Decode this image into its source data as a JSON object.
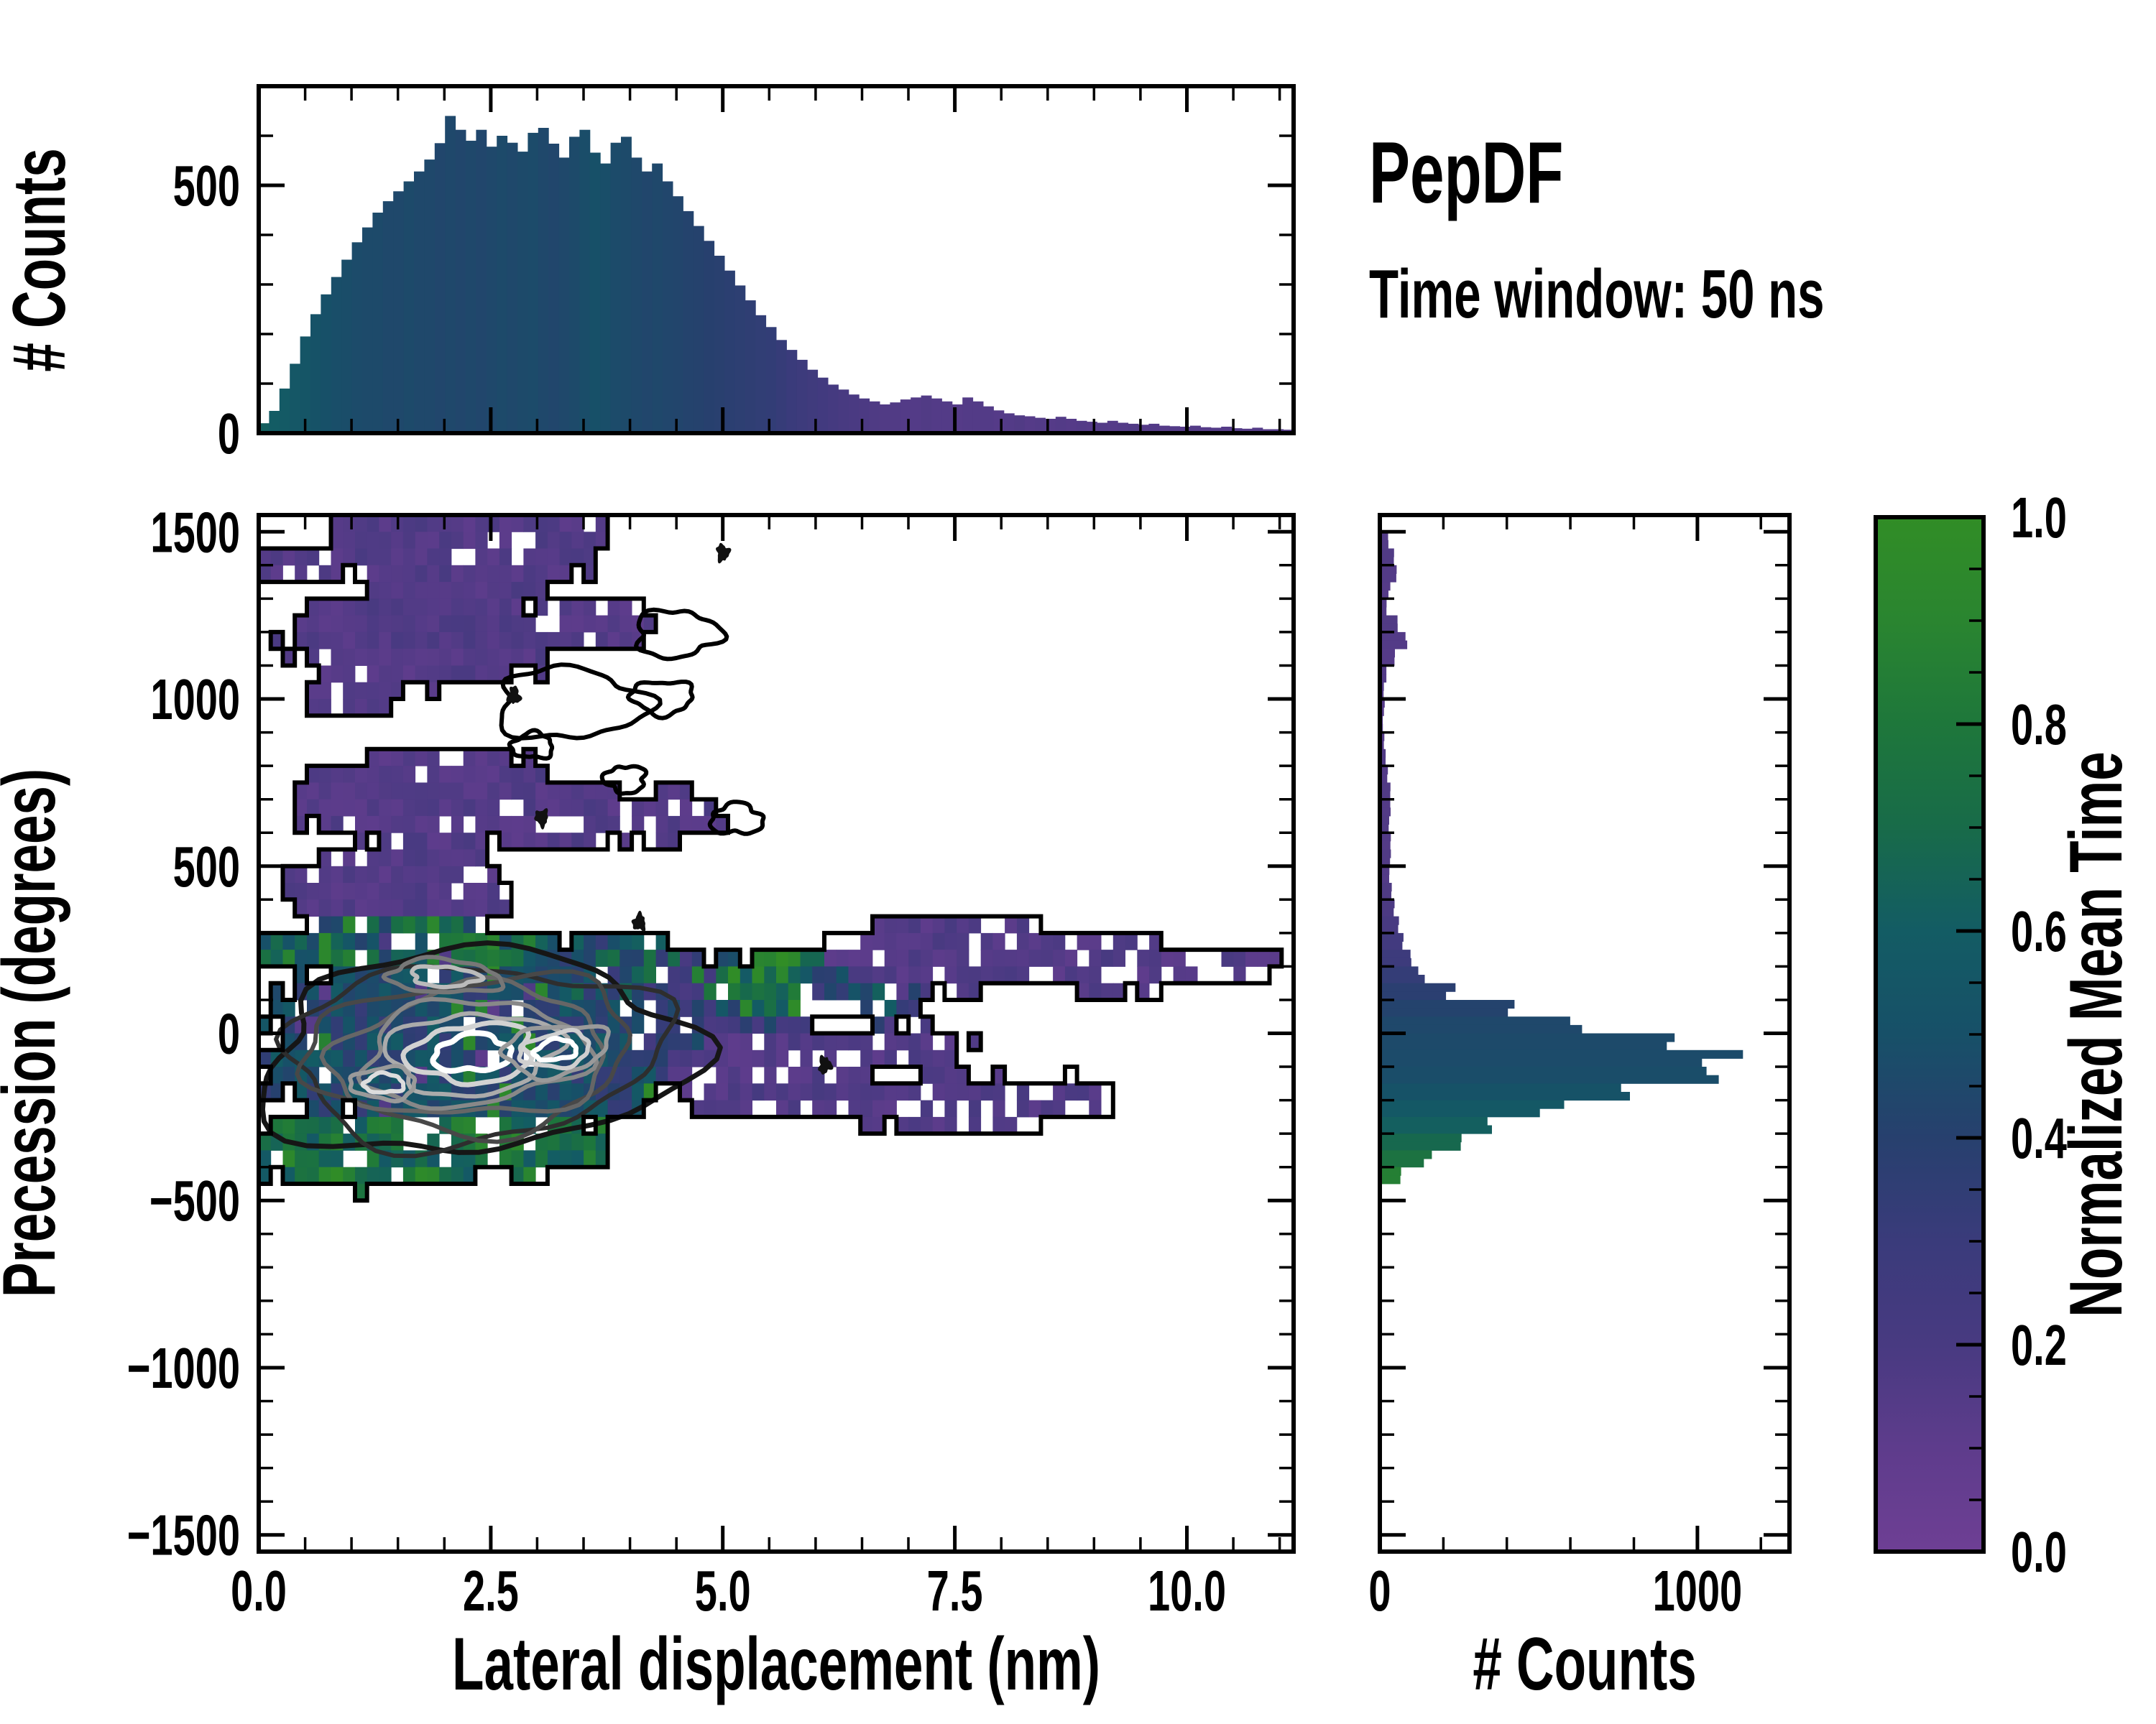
{
  "title": {
    "text": "PepDF",
    "subtitle": "Time window: 50 ns"
  },
  "labels": {
    "top_hist_y": "# Counts",
    "main_x": "Lateral displacement (nm)",
    "main_y": "Precession (degrees)",
    "right_hist_x": "# Counts",
    "colorbar": "Normalized Mean Time"
  },
  "colors": {
    "background": "#ffffff",
    "axis": "#000000",
    "contour_outer": "#000000"
  },
  "colormap": {
    "stops": [
      [
        0,
        "#6e3f94"
      ],
      [
        0.1,
        "#5e3c8c"
      ],
      [
        0.2,
        "#483a81"
      ],
      [
        0.3,
        "#3a3b7b"
      ],
      [
        0.4,
        "#27406e"
      ],
      [
        0.5,
        "#175068"
      ],
      [
        0.6,
        "#135c64"
      ],
      [
        0.7,
        "#186b49"
      ],
      [
        0.8,
        "#1e773b"
      ],
      [
        0.9,
        "#2a8530"
      ],
      [
        1,
        "#318d26"
      ]
    ]
  },
  "axes": {
    "main": {
      "xlim": [
        0,
        11.15
      ],
      "ylim": [
        -1550,
        1550
      ],
      "xticks": [
        0,
        2.5,
        5,
        7.5,
        10
      ],
      "xtick_labels": [
        "0.0",
        "2.5",
        "5.0",
        "7.5",
        "10.0"
      ],
      "xminor_step": 0.5,
      "yticks": [
        1500,
        1000,
        500,
        0,
        -500,
        -1000,
        -1500
      ],
      "ytick_labels": [
        "1500",
        "1000",
        "500",
        "0",
        "−500",
        "−1000",
        "−1500"
      ],
      "yminor_step": 100
    },
    "top_hist": {
      "ylim": [
        0,
        700
      ],
      "yticks": [
        0,
        500
      ],
      "ytick_labels": [
        "0",
        "500"
      ],
      "yminor_step": 100
    },
    "right_hist": {
      "xlim": [
        0,
        1290
      ],
      "xticks": [
        0,
        1000
      ],
      "xtick_labels": [
        "0",
        "1000"
      ],
      "xminor_step": 200
    },
    "colorbar": {
      "lim": [
        0,
        1
      ],
      "ticks": [
        0,
        0.2,
        0.4,
        0.6,
        0.8,
        1
      ],
      "tick_labels": [
        "0.0",
        "0.2",
        "0.4",
        "0.6",
        "0.8",
        "1.0"
      ],
      "minor_step": 0.05
    }
  },
  "chart_data": [
    {
      "name": "top_histogram",
      "type": "bar",
      "xlabel": "Lateral displacement (nm)",
      "ylabel": "# Counts",
      "xlim": [
        0,
        11.15
      ],
      "ylim": [
        0,
        700
      ],
      "bin_start": 0,
      "bin_width": 0.1115,
      "counts": [
        20,
        45,
        90,
        140,
        195,
        240,
        280,
        315,
        350,
        385,
        415,
        445,
        468,
        488,
        508,
        528,
        552,
        585,
        640,
        612,
        590,
        612,
        578,
        600,
        586,
        568,
        606,
        616,
        584,
        556,
        598,
        612,
        566,
        544,
        586,
        598,
        556,
        528,
        544,
        508,
        478,
        448,
        418,
        388,
        358,
        328,
        298,
        268,
        238,
        214,
        188,
        168,
        148,
        128,
        112,
        98,
        88,
        78,
        70,
        64,
        58,
        62,
        68,
        72,
        76,
        70,
        64,
        58,
        72,
        64,
        54,
        46,
        40,
        36,
        34,
        31,
        29,
        33,
        29,
        25,
        23,
        21,
        25,
        21,
        19,
        17,
        19,
        15,
        14,
        13,
        15,
        12,
        11,
        13,
        10,
        9,
        11,
        8,
        8,
        7
      ],
      "mean_time": [
        0.62,
        0.6,
        0.58,
        0.56,
        0.54,
        0.52,
        0.5,
        0.49,
        0.48,
        0.47,
        0.46,
        0.46,
        0.45,
        0.45,
        0.46,
        0.45,
        0.45,
        0.44,
        0.45,
        0.44,
        0.45,
        0.44,
        0.45,
        0.46,
        0.45,
        0.46,
        0.47,
        0.45,
        0.44,
        0.45,
        0.46,
        0.48,
        0.5,
        0.49,
        0.47,
        0.46,
        0.45,
        0.44,
        0.45,
        0.44,
        0.43,
        0.42,
        0.41,
        0.4,
        0.39,
        0.38,
        0.37,
        0.36,
        0.35,
        0.34,
        0.32,
        0.3,
        0.28,
        0.26,
        0.24,
        0.22,
        0.2,
        0.19,
        0.18,
        0.17,
        0.16,
        0.16,
        0.15,
        0.15,
        0.16,
        0.15,
        0.15,
        0.14,
        0.15,
        0.15,
        0.15,
        0.14,
        0.15,
        0.16,
        0.14,
        0.15,
        0.14,
        0.15,
        0.14,
        0.15,
        0.14,
        0.15,
        0.14,
        0.15,
        0.16,
        0.14,
        0.15,
        0.14,
        0.15,
        0.14,
        0.15,
        0.14,
        0.15,
        0.14,
        0.15,
        0.14,
        0.15,
        0.14,
        0.15,
        0.14
      ]
    },
    {
      "name": "joint_heatmap",
      "type": "heatmap",
      "xlabel": "Lateral displacement (nm)",
      "ylabel": "Precession (degrees)",
      "value_label": "Normalized Mean Time",
      "x_range": [
        0,
        11.15
      ],
      "y_range": [
        -1550,
        1550
      ],
      "cell_size": [
        0.12965,
        50
      ],
      "regions": [
        {
          "cx": 2.15,
          "cy": 1445,
          "rx": 1.45,
          "ry": 150,
          "d": 0.93,
          "v": [
            0.1,
            0.2
          ]
        },
        {
          "cx": 3.1,
          "cy": 1490,
          "rx": 0.8,
          "ry": 90,
          "d": 0.88,
          "v": [
            0.1,
            0.2
          ]
        },
        {
          "cx": 0.45,
          "cy": 1400,
          "rx": 0.4,
          "ry": 70,
          "d": 0.85,
          "v": [
            0.1,
            0.2
          ]
        },
        {
          "cx": 1.8,
          "cy": 1180,
          "rx": 1.55,
          "ry": 145,
          "d": 0.92,
          "v": [
            0.1,
            0.2
          ]
        },
        {
          "cx": 3.55,
          "cy": 1220,
          "rx": 0.7,
          "ry": 85,
          "d": 0.8,
          "v": [
            0.1,
            0.2
          ]
        },
        {
          "cx": 0.95,
          "cy": 1015,
          "rx": 0.5,
          "ry": 70,
          "d": 0.75,
          "v": [
            0.1,
            0.2
          ]
        },
        {
          "cx": 1.9,
          "cy": 700,
          "rx": 1.5,
          "ry": 150,
          "d": 0.9,
          "v": [
            0.1,
            0.2
          ]
        },
        {
          "cx": 3.35,
          "cy": 650,
          "rx": 0.75,
          "ry": 105,
          "d": 0.75,
          "v": [
            0.1,
            0.2
          ]
        },
        {
          "cx": 4.5,
          "cy": 645,
          "rx": 0.5,
          "ry": 80,
          "d": 0.85,
          "v": [
            0.1,
            0.2
          ]
        },
        {
          "cx": 1.55,
          "cy": 430,
          "rx": 1.3,
          "ry": 135,
          "d": 0.88,
          "v": [
            0.1,
            0.2
          ]
        },
        {
          "cx": 2.3,
          "cy": -25,
          "rx": 2.35,
          "ry": 300,
          "d": 0.965,
          "v": [
            0.32,
            0.6
          ],
          "sp": 1
        },
        {
          "cx": 1.5,
          "cy": 265,
          "rx": 1.55,
          "ry": 85,
          "d": 0.85,
          "v": [
            0.4,
            0.95
          ],
          "sp": 1
        },
        {
          "cx": 3.85,
          "cy": 190,
          "rx": 1.0,
          "ry": 105,
          "d": 0.8,
          "v": [
            0.3,
            0.75
          ]
        },
        {
          "cx": 1.15,
          "cy": -350,
          "rx": 1.45,
          "ry": 115,
          "d": 0.9,
          "v": [
            0.55,
            1.0
          ]
        },
        {
          "cx": 2.6,
          "cy": -330,
          "rx": 1.25,
          "ry": 95,
          "d": 0.82,
          "v": [
            0.5,
            0.95
          ]
        },
        {
          "cx": 4.95,
          "cy": 50,
          "rx": 1.0,
          "ry": 175,
          "d": 0.85,
          "v": [
            0.18,
            0.48
          ]
        },
        {
          "cx": 5.85,
          "cy": 150,
          "rx": 1.05,
          "ry": 105,
          "d": 0.8,
          "v": [
            0.55,
            1.0
          ]
        },
        {
          "cx": 6.55,
          "cy": 110,
          "rx": 0.75,
          "ry": 85,
          "d": 0.7,
          "v": [
            0.25,
            0.65
          ]
        },
        {
          "cx": 5.6,
          "cy": -130,
          "rx": 1.15,
          "ry": 135,
          "d": 0.85,
          "v": [
            0.1,
            0.22
          ]
        },
        {
          "cx": 7.55,
          "cy": 235,
          "rx": 1.45,
          "ry": 115,
          "d": 0.8,
          "v": [
            0.1,
            0.2
          ]
        },
        {
          "cx": 9.25,
          "cy": 205,
          "rx": 1.15,
          "ry": 85,
          "d": 0.75,
          "v": [
            0.1,
            0.2
          ]
        },
        {
          "cx": 10.35,
          "cy": 195,
          "rx": 0.75,
          "ry": 55,
          "d": 0.7,
          "v": [
            0.1,
            0.2
          ]
        },
        {
          "cx": 6.85,
          "cy": -45,
          "rx": 0.85,
          "ry": 75,
          "d": 0.7,
          "v": [
            0.1,
            0.2
          ]
        },
        {
          "cx": 7.45,
          "cy": -215,
          "rx": 1.05,
          "ry": 95,
          "d": 0.75,
          "v": [
            0.1,
            0.2
          ]
        },
        {
          "cx": 8.75,
          "cy": -195,
          "rx": 0.55,
          "ry": 65,
          "d": 0.7,
          "v": [
            0.1,
            0.2
          ]
        }
      ],
      "hollow_contours": [
        {
          "cx": 3.35,
          "cy": 985,
          "rx": 0.8,
          "ry": 105
        },
        {
          "cx": 4.35,
          "cy": 1005,
          "rx": 0.33,
          "ry": 50
        },
        {
          "cx": 2.95,
          "cy": 860,
          "rx": 0.22,
          "ry": 38
        },
        {
          "cx": 4.5,
          "cy": 1195,
          "rx": 0.45,
          "ry": 70
        },
        {
          "cx": 3.95,
          "cy": 760,
          "rx": 0.22,
          "ry": 40
        },
        {
          "cx": 5.15,
          "cy": 640,
          "rx": 0.28,
          "ry": 45
        }
      ],
      "dots": [
        {
          "cx": 2.75,
          "cy": 1010
        },
        {
          "cx": 5.0,
          "cy": 1437
        },
        {
          "cx": 3.05,
          "cy": 645
        },
        {
          "cx": 4.1,
          "cy": 332
        },
        {
          "cx": 6.1,
          "cy": -95
        }
      ],
      "density_contour_sets": [
        {
          "cx": 2.3,
          "cy": -60,
          "rx": 2.3,
          "ry": 300,
          "rot": -4,
          "levels": [
            {
              "s": 1.0,
              "color": "#161616",
              "w": 7
            },
            {
              "s": 0.88,
              "color": "#2e2e2e",
              "w": 6
            },
            {
              "s": 0.76,
              "color": "#484848",
              "w": 6
            },
            {
              "s": 0.64,
              "color": "#666666",
              "w": 6
            },
            {
              "s": 0.52,
              "color": "#888888",
              "w": 6
            },
            {
              "s": 0.4,
              "color": "#ababab",
              "w": 6
            },
            {
              "s": 0.29,
              "color": "#d2d2d2",
              "w": 7
            },
            {
              "s": 0.18,
              "color": "#ffffff",
              "w": 8
            }
          ]
        },
        {
          "cx": 3.2,
          "cy": -50,
          "rx": 0.9,
          "ry": 120,
          "rot": -8,
          "levels": [
            {
              "s": 0.62,
              "color": "#9a9a9a",
              "w": 6
            },
            {
              "s": 0.42,
              "color": "#cfcfcf",
              "w": 6
            },
            {
              "s": 0.25,
              "color": "#ffffff",
              "w": 7
            }
          ]
        },
        {
          "cx": 1.35,
          "cy": -150,
          "rx": 0.7,
          "ry": 95,
          "rot": 0,
          "levels": [
            {
              "s": 0.5,
              "color": "#9a9a9a",
              "w": 6
            },
            {
              "s": 0.3,
              "color": "#dddddd",
              "w": 6
            }
          ]
        },
        {
          "cx": 2.0,
          "cy": 170,
          "rx": 1.1,
          "ry": 90,
          "rot": 3,
          "levels": [
            {
              "s": 0.55,
              "color": "#777777",
              "w": 6
            },
            {
              "s": 0.33,
              "color": "#bbbbbb",
              "w": 6
            }
          ]
        }
      ]
    },
    {
      "name": "right_histogram",
      "type": "bar",
      "orientation": "horizontal",
      "xlabel": "# Counts",
      "ylabel": "Precession (degrees)",
      "xlim": [
        0,
        1290
      ],
      "ylim": [
        -1550,
        1550
      ],
      "bin_start": 1550,
      "bin_width": -50,
      "counts": [
        0,
        28,
        48,
        55,
        30,
        22,
        58,
        78,
        45,
        20,
        12,
        14,
        10,
        13,
        18,
        24,
        32,
        34,
        28,
        32,
        36,
        28,
        36,
        46,
        56,
        72,
        92,
        132,
        225,
        430,
        660,
        915,
        1060,
        1010,
        770,
        540,
        375,
        255,
        155,
        68,
        0,
        0,
        0,
        0,
        0,
        0,
        0,
        0,
        0,
        0,
        0,
        0,
        0,
        0,
        0,
        0,
        0,
        0,
        0,
        0,
        0,
        0
      ],
      "mean_time": [
        0,
        0.15,
        0.16,
        0.15,
        0.14,
        0.15,
        0.16,
        0.15,
        0.14,
        0.15,
        0.15,
        0.14,
        0.15,
        0.14,
        0.16,
        0.15,
        0.16,
        0.15,
        0.16,
        0.15,
        0.16,
        0.15,
        0.17,
        0.18,
        0.2,
        0.24,
        0.28,
        0.33,
        0.38,
        0.42,
        0.45,
        0.46,
        0.47,
        0.48,
        0.52,
        0.57,
        0.62,
        0.68,
        0.76,
        0.86,
        0,
        0,
        0,
        0,
        0,
        0,
        0,
        0,
        0,
        0,
        0,
        0,
        0,
        0,
        0,
        0,
        0,
        0,
        0,
        0,
        0,
        0
      ]
    }
  ]
}
